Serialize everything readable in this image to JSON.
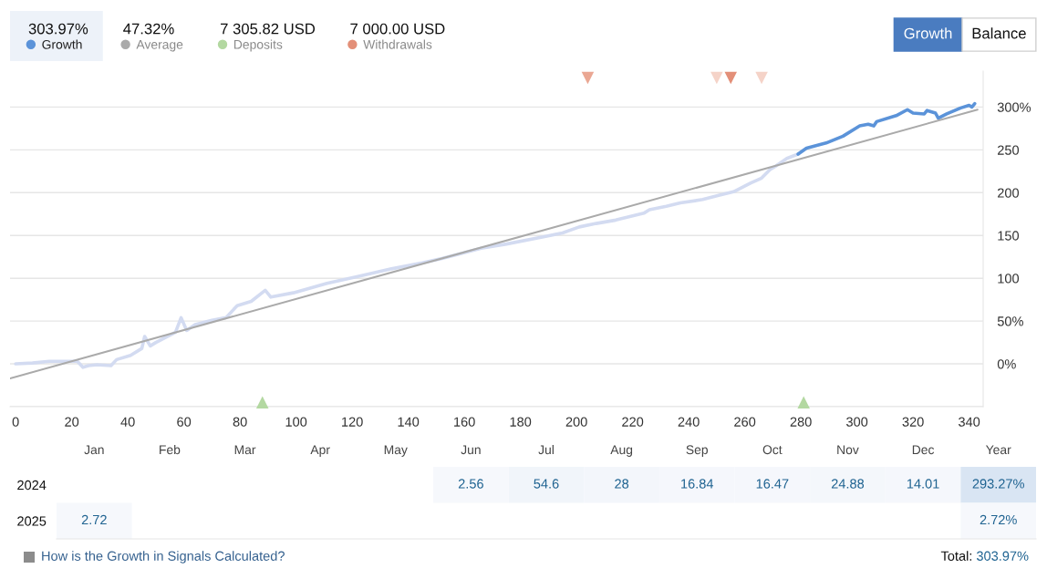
{
  "chart_data": [
    {
      "type": "line",
      "annotations": [
        "303.97%",
        "47.32%",
        "7 305.82 USD",
        "7 000.00 USD",
        "Growth",
        "Balance"
      ],
      "legend": "top left",
      "grid": "y",
      "xlim": [
        -2,
        345
      ],
      "xticks": [
        0,
        20,
        40,
        60,
        80,
        100,
        120,
        140,
        160,
        180,
        200,
        220,
        240,
        260,
        280,
        300,
        320,
        340
      ],
      "ylim": [
        -50,
        342
      ],
      "yticks": [
        {
          "value": -50,
          "label": null
        },
        {
          "value": 0,
          "label": "0%"
        },
        {
          "value": 50,
          "label": "50%"
        },
        100,
        150,
        200,
        250,
        {
          "value": 300,
          "label": "300%"
        }
      ],
      "series": [
        {
          "color": "#d3dbf1",
          "x": [
            0,
            6,
            12,
            18,
            22,
            24,
            26,
            29,
            34,
            36,
            41,
            45,
            46,
            48,
            50,
            57,
            59,
            61,
            64,
            70,
            75,
            79,
            84,
            89,
            91,
            99,
            111,
            122,
            134,
            145,
            152,
            166,
            175,
            189,
            195,
            201,
            207,
            214,
            220,
            224,
            226,
            232,
            237,
            245,
            251,
            256,
            262,
            266,
            269,
            271,
            275,
            279
          ],
          "values": [
            0,
            1,
            3,
            3,
            3,
            -4,
            -2,
            -1,
            -2,
            5,
            10,
            18,
            32,
            21,
            25,
            37,
            54,
            39,
            46,
            51,
            54,
            68,
            73,
            86,
            78,
            83,
            94,
            102,
            111,
            118,
            123,
            135,
            140,
            149,
            153,
            160,
            164,
            168,
            173,
            176,
            180,
            184,
            188,
            192,
            197,
            201,
            211,
            217,
            227,
            231,
            240,
            245
          ]
        },
        {
          "name": "Growth",
          "color": "#5b93d9",
          "x": [
            279,
            282,
            289,
            295,
            301,
            304,
            306,
            307,
            314,
            318,
            320,
            324,
            325,
            328,
            329,
            332,
            337,
            340,
            341,
            342
          ],
          "values": [
            245,
            252,
            258,
            266,
            278,
            280,
            278,
            283,
            290,
            297,
            293,
            292,
            296,
            293,
            287,
            292,
            299,
            302,
            300,
            304
          ]
        },
        {
          "name": "Average",
          "color": "#aaaaaa",
          "x": [
            -2,
            343
          ],
          "values": [
            -17,
            297
          ]
        },
        {
          "type": "scatter",
          "name": "Deposits",
          "color": "#b3d8a1",
          "marker": "triangle",
          "x": [
            88,
            281
          ],
          "values": [
            -45,
            -45
          ]
        },
        {
          "type": "scatter",
          "name": "Withdrawals",
          "color": "#e38f78",
          "colors": [
            "#eaa793",
            "#f5d3c8",
            "#e38f78",
            "#f5d3c8"
          ],
          "marker": "triangle",
          "x": [
            204,
            250,
            255,
            266
          ],
          "values": [
            334,
            334,
            334,
            334
          ]
        }
      ]
    },
    {
      "type": "heatmap",
      "categories": [
        "Jan",
        "Feb",
        "Mar",
        "Apr",
        "May",
        "Jun",
        "Jul",
        "Aug",
        "Sep",
        "Oct",
        "Nov",
        "Dec",
        "Year"
      ],
      "y_categories": [
        "2024",
        "2025"
      ],
      "cells": [
        [
          null,
          null,
          null,
          null,
          null,
          2.56,
          54.6,
          28,
          16.84,
          16.47,
          24.88,
          14.01,
          293.27
        ],
        [
          2.72,
          null,
          null,
          null,
          null,
          null,
          null,
          null,
          null,
          null,
          null,
          null,
          2.72
        ]
      ],
      "cell_labels": [
        [
          null,
          null,
          null,
          null,
          null,
          "2.56",
          "54.6",
          "28",
          "16.84",
          "16.47",
          "24.88",
          "14.01",
          "293.27%"
        ],
        [
          "2.72",
          null,
          null,
          null,
          null,
          null,
          null,
          null,
          null,
          null,
          null,
          null,
          "2.72%"
        ]
      ],
      "annotations": [
        "How is the Growth in Signals Calculated?",
        "Total:",
        "303.97%"
      ]
    }
  ]
}
